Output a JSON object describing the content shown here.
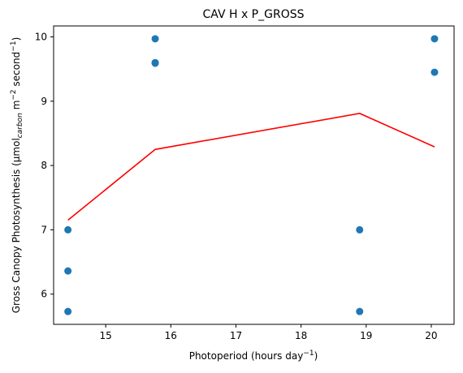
{
  "chart_data": {
    "type": "scatter",
    "title": "CAV H x P_GROSS",
    "xlabel": "Photoperiod (hours day",
    "xlabel_sup": "−1",
    "xlabel_end": ")",
    "ylabel_parts": {
      "a": "Gross Canopy Photosynthesis (μmol",
      "sub": "carbon",
      "b": " m",
      "sup1": "−2",
      "c": " second",
      "sup2": "−1",
      "d": ")"
    },
    "xlim": [
      14.2,
      20.35
    ],
    "ylim": [
      5.53,
      10.17
    ],
    "xticks": [
      15,
      16,
      17,
      18,
      19,
      20
    ],
    "yticks": [
      6,
      7,
      8,
      9,
      10
    ],
    "grid": false,
    "points": {
      "color": "#1f77b4",
      "x": [
        14.42,
        14.42,
        14.42,
        15.76,
        15.76,
        15.76,
        18.9,
        18.9,
        20.05,
        20.05
      ],
      "y": [
        7.0,
        6.36,
        5.73,
        9.97,
        9.59,
        9.6,
        7.0,
        5.73,
        9.97,
        9.45
      ]
    },
    "line": {
      "color": "#ff0000",
      "x": [
        14.42,
        15.76,
        18.9,
        20.05
      ],
      "y": [
        7.15,
        8.25,
        8.81,
        8.29
      ]
    }
  }
}
